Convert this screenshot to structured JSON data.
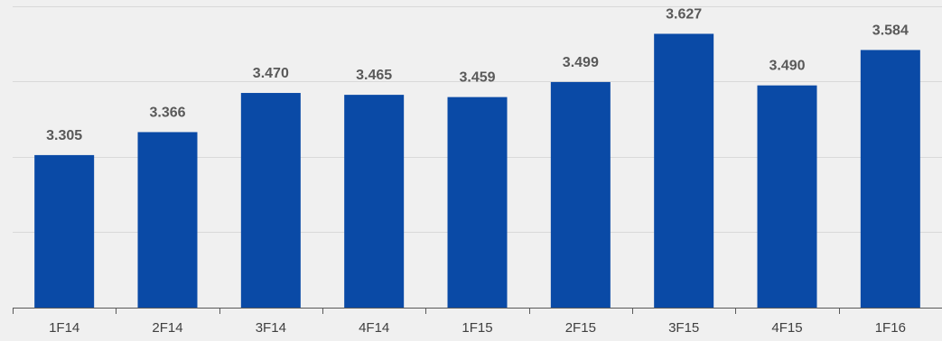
{
  "chart_data": {
    "type": "bar",
    "title": "",
    "xlabel": "",
    "ylabel": "",
    "categories": [
      "1F14",
      "2F14",
      "3F14",
      "4F14",
      "1F15",
      "2F15",
      "3F15",
      "4F15",
      "1F16"
    ],
    "values": [
      3.305,
      3.366,
      3.47,
      3.465,
      3.459,
      3.499,
      3.627,
      3.49,
      3.584
    ],
    "value_labels": [
      "3.305",
      "3.366",
      "3.470",
      "3.465",
      "3.459",
      "3.499",
      "3.627",
      "3.490",
      "3.584"
    ],
    "ylim": [
      2.9,
      3.7
    ],
    "grid": true,
    "bar_color": "#0a4aa6",
    "background_color": "#f0f0f0",
    "grid_color": "#d9d9d9",
    "axis_color": "#595959"
  }
}
